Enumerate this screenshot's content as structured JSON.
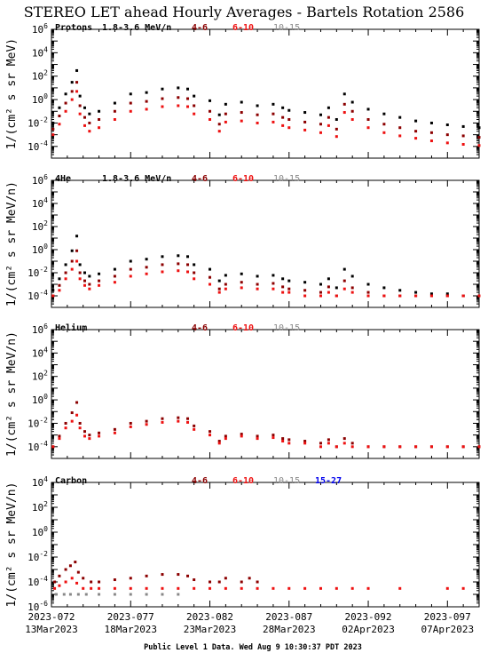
{
  "title": "STEREO LET ahead Hourly Averages - Bartels Rotation 2586",
  "footer": "Public Level 1 Data. Wed Aug  9 10:30:37 PDT 2023",
  "colors": {
    "black": "#000000",
    "dark_red": "#8b0000",
    "red": "#ee1111",
    "gray": "#888888",
    "blue": "#0000ee"
  },
  "x_axis": {
    "range_days": [
      0,
      27
    ],
    "ticks": [
      {
        "day": 0,
        "label1": "2023-072",
        "label2": "13Mar2023"
      },
      {
        "day": 5,
        "label1": "2023-077",
        "label2": "18Mar2023"
      },
      {
        "day": 10,
        "label1": "2023-082",
        "label2": "23Mar2023"
      },
      {
        "day": 15,
        "label1": "2023-087",
        "label2": "28Mar2023"
      },
      {
        "day": 20,
        "label1": "2023-092",
        "label2": "02Apr2023"
      },
      {
        "day": 25,
        "label1": "2023-097",
        "label2": "07Apr2023"
      }
    ]
  },
  "panels": [
    {
      "label": "Protons",
      "ylabel": "1/(cm² s sr MeV)",
      "ylog_range": [
        -5,
        6
      ],
      "ytick_exps": [
        6,
        4,
        2,
        0,
        -2,
        -4
      ],
      "legend": [
        {
          "text": "1.8-3.6 MeV/n",
          "color": "black"
        },
        {
          "text": "4-6",
          "color": "dark_red"
        },
        {
          "text": "6-10",
          "color": "red"
        },
        {
          "text": "10-15",
          "color": "gray"
        }
      ]
    },
    {
      "label": "4He",
      "ylabel": "1/(cm² s sr MeV/n)",
      "ylog_range": [
        -5,
        6
      ],
      "ytick_exps": [
        6,
        4,
        2,
        0,
        -2,
        -4
      ],
      "legend": [
        {
          "text": "1.8-3.6 MeV/n",
          "color": "black"
        },
        {
          "text": "4-6",
          "color": "dark_red"
        },
        {
          "text": "6-10",
          "color": "red"
        },
        {
          "text": "10-15",
          "color": "gray"
        }
      ]
    },
    {
      "label": "Helium",
      "ylabel": "1/(cm² s sr MeV/n)",
      "ylog_range": [
        -5,
        6
      ],
      "ytick_exps": [
        6,
        4,
        2,
        0,
        -2,
        -4
      ],
      "legend": [
        {
          "text": "4-6",
          "color": "dark_red"
        },
        {
          "text": "6-10",
          "color": "red"
        },
        {
          "text": "10-15",
          "color": "gray"
        }
      ]
    },
    {
      "label": "Carbon",
      "ylabel": "1/(cm² s sr MeV/n)",
      "ylog_range": [
        -6,
        4
      ],
      "ytick_exps": [
        4,
        2,
        0,
        -2,
        -4,
        -6
      ],
      "legend": [
        {
          "text": "4-6",
          "color": "dark_red"
        },
        {
          "text": "6-10",
          "color": "red"
        },
        {
          "text": "10-15",
          "color": "gray"
        },
        {
          "text": "15-27",
          "color": "blue"
        }
      ]
    }
  ],
  "chart_data": [
    {
      "type": "scatter",
      "title": "Protons",
      "ylabel": "1/(cm² s sr MeV)",
      "yscale": "log",
      "ylim": [
        1e-05,
        1000000.0
      ],
      "series": [
        {
          "name": "1.8-3.6 MeV/n",
          "color": "black",
          "x": [
            0.1,
            0.5,
            0.9,
            1.3,
            1.6,
            1.8,
            2.1,
            2.4,
            3.0,
            4.0,
            5.0,
            6.0,
            7.0,
            8.0,
            8.6,
            9.0,
            10.0,
            10.6,
            11.0,
            12.0,
            13.0,
            14.0,
            14.6,
            15.0,
            16.0,
            17.0,
            17.5,
            18.0,
            18.5,
            19.0,
            20.0,
            21.0,
            22.0,
            23.0,
            24.0,
            25.0,
            26.0,
            27.0
          ],
          "y": [
            0.01,
            0.2,
            3,
            30,
            300,
            2,
            0.2,
            0.06,
            0.1,
            0.5,
            3,
            4,
            8,
            10,
            8,
            2,
            0.8,
            0.05,
            0.4,
            0.6,
            0.3,
            0.4,
            0.2,
            0.12,
            0.08,
            0.05,
            0.2,
            0.02,
            3,
            0.6,
            0.15,
            0.06,
            0.03,
            0.015,
            0.01,
            0.007,
            0.005,
            0.004
          ]
        },
        {
          "name": "4-6",
          "color": "dark_red",
          "x": [
            0.1,
            0.5,
            0.9,
            1.3,
            1.6,
            1.8,
            2.1,
            2.4,
            3.0,
            4.0,
            5.0,
            6.0,
            7.0,
            8.0,
            8.6,
            9.0,
            10.0,
            10.6,
            11.0,
            12.0,
            13.0,
            14.0,
            14.6,
            15.0,
            16.0,
            17.0,
            17.5,
            18.0,
            18.5,
            19.0,
            20.0,
            21.0,
            22.0,
            23.0,
            24.0,
            25.0,
            26.0,
            27.0
          ],
          "y": [
            0.003,
            0.04,
            0.5,
            5,
            30,
            0.3,
            0.03,
            0.01,
            0.02,
            0.1,
            0.5,
            0.7,
            1.2,
            1.5,
            1.2,
            0.3,
            0.1,
            0.008,
            0.06,
            0.08,
            0.05,
            0.06,
            0.03,
            0.02,
            0.012,
            0.008,
            0.03,
            0.003,
            0.4,
            0.1,
            0.02,
            0.008,
            0.004,
            0.002,
            0.0015,
            0.001,
            0.0008,
            0.0006
          ]
        },
        {
          "name": "6-10",
          "color": "red",
          "x": [
            0.1,
            0.5,
            0.9,
            1.3,
            1.6,
            1.8,
            2.1,
            2.4,
            3.0,
            4.0,
            5.0,
            6.0,
            7.0,
            8.0,
            8.6,
            9.0,
            10.0,
            10.6,
            11.0,
            12.0,
            13.0,
            14.0,
            14.6,
            15.0,
            16.0,
            17.0,
            17.5,
            18.0,
            18.5,
            19.0,
            20.0,
            21.0,
            22.0,
            23.0,
            24.0,
            25.0,
            26.0,
            27.0
          ],
          "y": [
            0.001,
            0.008,
            0.1,
            1,
            5,
            0.06,
            0.006,
            0.002,
            0.004,
            0.02,
            0.1,
            0.15,
            0.25,
            0.3,
            0.25,
            0.06,
            0.02,
            0.002,
            0.012,
            0.015,
            0.01,
            0.012,
            0.006,
            0.004,
            0.0025,
            0.0015,
            0.006,
            0.0007,
            0.08,
            0.02,
            0.004,
            0.0015,
            0.0008,
            0.0005,
            0.0003,
            0.0002,
            0.00015,
            0.00012
          ]
        }
      ]
    },
    {
      "type": "scatter",
      "title": "4He",
      "ylabel": "1/(cm² s sr MeV/n)",
      "yscale": "log",
      "ylim": [
        1e-05,
        1000000.0
      ],
      "series": [
        {
          "name": "1.8-3.6 MeV/n",
          "color": "black",
          "x": [
            0.1,
            0.5,
            0.9,
            1.3,
            1.6,
            1.8,
            2.1,
            2.4,
            3.0,
            4.0,
            5.0,
            6.0,
            7.0,
            8.0,
            8.6,
            9.0,
            10.0,
            10.6,
            11.0,
            12.0,
            13.0,
            14.0,
            14.6,
            15.0,
            16.0,
            17.0,
            17.5,
            18.0,
            18.5,
            19.0,
            20.0,
            21.0,
            22.0,
            23.0,
            24.0,
            25.0,
            26.0,
            27.0
          ],
          "y": [
            0.0003,
            0.003,
            0.05,
            0.8,
            15,
            0.05,
            0.01,
            0.005,
            0.008,
            0.02,
            0.1,
            0.15,
            0.25,
            0.3,
            0.25,
            0.05,
            0.02,
            0.002,
            0.006,
            0.008,
            0.005,
            0.006,
            0.003,
            0.002,
            0.0015,
            0.001,
            0.003,
            0.0005,
            0.02,
            0.005,
            0.001,
            0.0005,
            0.0003,
            0.0002,
            0.00015,
            0.00015,
            0.0001,
            0.0001
          ]
        },
        {
          "name": "4-6",
          "color": "dark_red",
          "x": [
            0.1,
            0.5,
            0.9,
            1.3,
            1.6,
            1.8,
            2.1,
            2.4,
            3.0,
            4.0,
            5.0,
            6.0,
            7.0,
            8.0,
            8.6,
            9.0,
            10.0,
            10.6,
            11.0,
            12.0,
            13.0,
            14.0,
            14.6,
            15.0,
            16.0,
            17.0,
            17.5,
            18.0,
            18.5,
            19.0,
            20.0,
            21.0,
            22.0,
            23.0,
            24.0,
            25.0,
            26.0,
            27.0
          ],
          "y": [
            0.0001,
            0.0008,
            0.01,
            0.1,
            0.8,
            0.01,
            0.002,
            0.001,
            0.002,
            0.005,
            0.02,
            0.03,
            0.05,
            0.06,
            0.05,
            0.01,
            0.004,
            0.0004,
            0.001,
            0.0015,
            0.001,
            0.0012,
            0.0006,
            0.0004,
            0.0003,
            0.0002,
            0.0006,
            0.0001,
            0.002,
            0.0005,
            0.0002,
            0.0001,
            0.0001,
            0.0001,
            0.0001,
            0.0001,
            0.0001,
            0.0001
          ]
        },
        {
          "name": "6-10",
          "color": "red",
          "x": [
            0.1,
            0.5,
            0.9,
            1.3,
            1.6,
            1.8,
            2.1,
            2.4,
            3.0,
            4.0,
            5.0,
            6.0,
            7.0,
            8.0,
            8.6,
            9.0,
            10.0,
            10.6,
            11.0,
            12.0,
            13.0,
            14.0,
            14.6,
            15.0,
            16.0,
            17.0,
            17.5,
            18.0,
            18.5,
            19.0,
            20.0,
            21.0,
            22.0,
            23.0,
            24.0,
            25.0,
            26.0,
            27.0
          ],
          "y": [
            0.0001,
            0.0003,
            0.003,
            0.02,
            0.1,
            0.003,
            0.0008,
            0.0004,
            0.0008,
            0.0015,
            0.005,
            0.008,
            0.012,
            0.015,
            0.012,
            0.003,
            0.001,
            0.0002,
            0.0004,
            0.0005,
            0.0004,
            0.0004,
            0.0002,
            0.0002,
            0.0001,
            0.0001,
            0.0002,
            0.0001,
            0.0004,
            0.0002,
            0.0001,
            0.0001,
            0.0001,
            0.0001,
            0.0001,
            0.0001,
            0.0001,
            0.0001
          ]
        }
      ]
    },
    {
      "type": "scatter",
      "title": "Helium",
      "ylabel": "1/(cm² s sr MeV/n)",
      "yscale": "log",
      "ylim": [
        1e-05,
        1000000.0
      ],
      "series": [
        {
          "name": "4-6",
          "color": "dark_red",
          "x": [
            0.1,
            0.5,
            0.9,
            1.3,
            1.6,
            1.8,
            2.1,
            2.4,
            3.0,
            4.0,
            5.0,
            6.0,
            7.0,
            8.0,
            8.6,
            9.0,
            10.0,
            10.6,
            11.0,
            12.0,
            13.0,
            14.0,
            14.6,
            15.0,
            16.0,
            17.0,
            17.5,
            18.0,
            18.5,
            19.0,
            20.0,
            21.0,
            22.0,
            23.0,
            24.0,
            25.0,
            26.0,
            27.0
          ],
          "y": [
            0.0001,
            0.0008,
            0.01,
            0.08,
            0.6,
            0.01,
            0.002,
            0.001,
            0.0015,
            0.003,
            0.01,
            0.015,
            0.025,
            0.03,
            0.025,
            0.006,
            0.002,
            0.0003,
            0.0008,
            0.0012,
            0.0008,
            0.001,
            0.0005,
            0.0004,
            0.0003,
            0.0002,
            0.0004,
            0.0001,
            0.0005,
            0.0002,
            0.0001,
            0.0001,
            0.0001,
            0.0001,
            0.0001,
            0.0001,
            0.0001,
            0.0001
          ]
        },
        {
          "name": "6-10",
          "color": "red",
          "x": [
            0.1,
            0.5,
            0.9,
            1.3,
            1.6,
            1.8,
            2.1,
            2.4,
            3.0,
            4.0,
            5.0,
            6.0,
            7.0,
            8.0,
            8.6,
            9.0,
            10.0,
            10.6,
            11.0,
            12.0,
            13.0,
            14.0,
            14.6,
            15.0,
            16.0,
            17.0,
            17.5,
            18.0,
            18.5,
            19.0,
            20.0,
            21.0,
            22.0,
            23.0,
            24.0,
            25.0,
            26.0,
            27.0
          ],
          "y": [
            0.0001,
            0.0005,
            0.004,
            0.015,
            0.05,
            0.004,
            0.0008,
            0.0005,
            0.0008,
            0.0015,
            0.005,
            0.008,
            0.012,
            0.015,
            0.012,
            0.003,
            0.001,
            0.0002,
            0.0005,
            0.0008,
            0.0005,
            0.0006,
            0.0003,
            0.0002,
            0.0002,
            0.0001,
            0.0002,
            0.0001,
            0.0002,
            0.0001,
            0.0001,
            0.0001,
            0.0001,
            0.0001,
            0.0001,
            0.0001,
            0.0001,
            0.0001
          ]
        }
      ]
    },
    {
      "type": "scatter",
      "title": "Carbon",
      "ylabel": "1/(cm² s sr MeV/n)",
      "yscale": "log",
      "ylim": [
        1e-06,
        10000.0
      ],
      "series": [
        {
          "name": "4-6",
          "color": "dark_red",
          "x": [
            0.2,
            0.5,
            0.9,
            1.2,
            1.5,
            1.7,
            2.0,
            2.5,
            3.0,
            4.0,
            5.0,
            6.0,
            7.0,
            8.0,
            8.6,
            9.0,
            10.0,
            10.6,
            11.0,
            12.0,
            12.5,
            13.0
          ],
          "y": [
            0.0001,
            0.0003,
            0.001,
            0.002,
            0.004,
            0.0006,
            0.0002,
            0.0001,
            0.0001,
            0.00015,
            0.0002,
            0.0003,
            0.0004,
            0.0004,
            0.0003,
            0.00015,
            0.0001,
            0.0001,
            0.0002,
            0.0001,
            0.0002,
            0.0001
          ]
        },
        {
          "name": "6-10",
          "color": "red",
          "x": [
            0.2,
            0.5,
            0.9,
            1.3,
            1.6,
            2.0,
            2.5,
            3.0,
            4.0,
            5.0,
            6.0,
            7.0,
            8.0,
            9.0,
            10.0,
            11.0,
            12.0,
            13.0,
            14.0,
            15.0,
            16.0,
            17.0,
            18.0,
            19.0,
            20.0,
            22.0,
            25.0,
            26.0
          ],
          "y": [
            3e-05,
            5e-05,
            0.0001,
            0.0002,
            8e-05,
            3e-05,
            3e-05,
            3e-05,
            3e-05,
            3e-05,
            3e-05,
            3e-05,
            3e-05,
            3e-05,
            3e-05,
            3e-05,
            3e-05,
            3e-05,
            3e-05,
            3e-05,
            3e-05,
            3e-05,
            3e-05,
            3e-05,
            3e-05,
            3e-05,
            3e-05,
            3e-05
          ]
        },
        {
          "name": "10-15",
          "color": "gray",
          "x": [
            0.3,
            0.8,
            1.2,
            1.7,
            2.2,
            3.0,
            4.0,
            5.0,
            6.0,
            7.0,
            8.0
          ],
          "y": [
            1e-05,
            1e-05,
            1e-05,
            1e-05,
            1e-05,
            1e-05,
            1e-05,
            1e-05,
            1e-05,
            1e-05,
            1e-05
          ]
        }
      ]
    }
  ]
}
